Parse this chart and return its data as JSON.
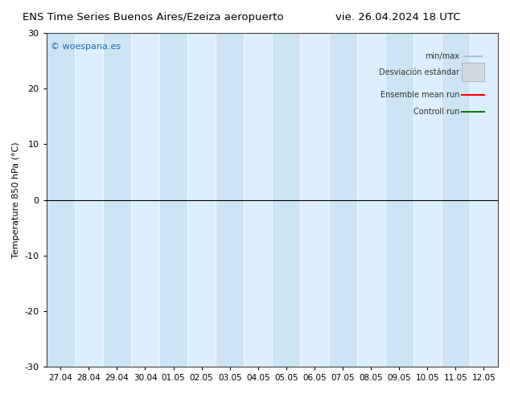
{
  "title_left": "ENS Time Series Buenos Aires/Ezeiza aeropuerto",
  "title_right": "vie. 26.04.2024 18 UTC",
  "ylabel": "Temperature 850 hPa (°C)",
  "ylim": [
    -30,
    30
  ],
  "yticks": [
    -30,
    -20,
    -10,
    0,
    10,
    20,
    30
  ],
  "x_labels": [
    "27.04",
    "28.04",
    "29.04",
    "30.04",
    "01.05",
    "02.05",
    "03.05",
    "04.05",
    "05.05",
    "06.05",
    "07.05",
    "08.05",
    "09.05",
    "10.05",
    "11.05",
    "12.05"
  ],
  "watermark": "© woespana.es",
  "legend_items": [
    "min/max",
    "Desviación estándar",
    "Ensemble mean run",
    "Controll run"
  ],
  "bg_color": "#ffffff",
  "plot_bg_color": "#ddeeff",
  "band_color": "#cce4f4",
  "band_dark_color": "#b8d4e8",
  "zero_line_color": "#000000",
  "ensemble_mean_color": "#ff0000",
  "control_run_color": "#008000",
  "legend_minmax_color": "#a0c4e0",
  "legend_std_color": "#c8c8c8",
  "title_fontsize": 9.5,
  "axis_fontsize": 8,
  "watermark_color": "#1a6cb5"
}
